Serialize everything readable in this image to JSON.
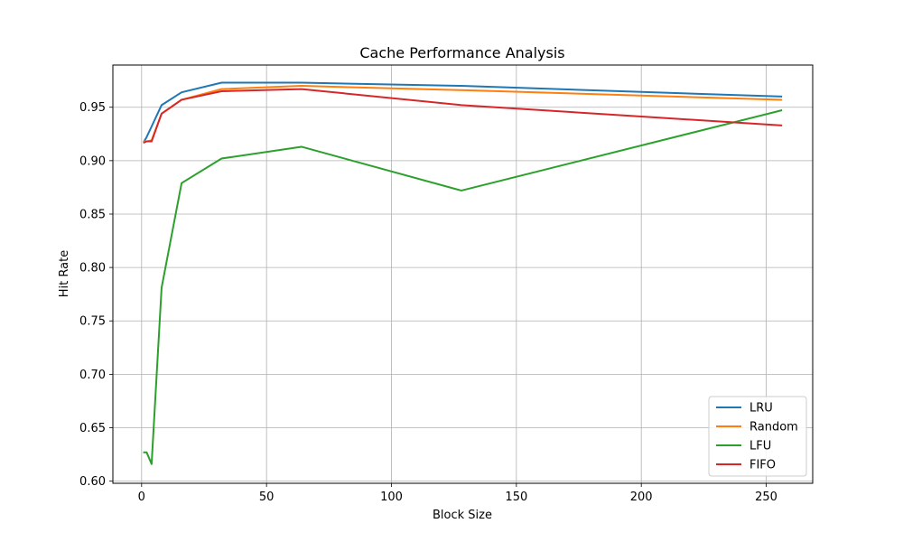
{
  "chart_data": {
    "type": "line",
    "title": "Cache Performance Analysis",
    "xlabel": "Block Size",
    "ylabel": "Hit Rate",
    "xlim": [
      -11.5,
      268.6
    ],
    "ylim": [
      0.598,
      0.9895
    ],
    "xticks": [
      0,
      50,
      100,
      150,
      200,
      250
    ],
    "yticks": [
      0.6,
      0.65,
      0.7,
      0.75,
      0.8,
      0.85,
      0.9,
      0.95
    ],
    "ytick_labels": [
      "0.60",
      "0.65",
      "0.70",
      "0.75",
      "0.80",
      "0.85",
      "0.90",
      "0.95"
    ],
    "grid": true,
    "legend_position": "lower-right",
    "x": [
      1,
      2,
      4,
      8,
      16,
      32,
      64,
      128,
      256
    ],
    "series": [
      {
        "name": "LRU",
        "color": "#1f77b4",
        "values": [
          0.918,
          0.922,
          0.932,
          0.952,
          0.964,
          0.973,
          0.973,
          0.97,
          0.96
        ]
      },
      {
        "name": "Random",
        "color": "#ff7f0e",
        "values": [
          0.918,
          0.918,
          0.919,
          0.944,
          0.957,
          0.967,
          0.97,
          0.966,
          0.957
        ]
      },
      {
        "name": "LFU",
        "color": "#2ca02c",
        "values": [
          0.627,
          0.627,
          0.616,
          0.781,
          0.879,
          0.902,
          0.913,
          0.872,
          0.947
        ]
      },
      {
        "name": "FIFO",
        "color": "#d62728",
        "values": [
          0.917,
          0.918,
          0.918,
          0.944,
          0.957,
          0.965,
          0.967,
          0.952,
          0.933
        ]
      }
    ]
  }
}
